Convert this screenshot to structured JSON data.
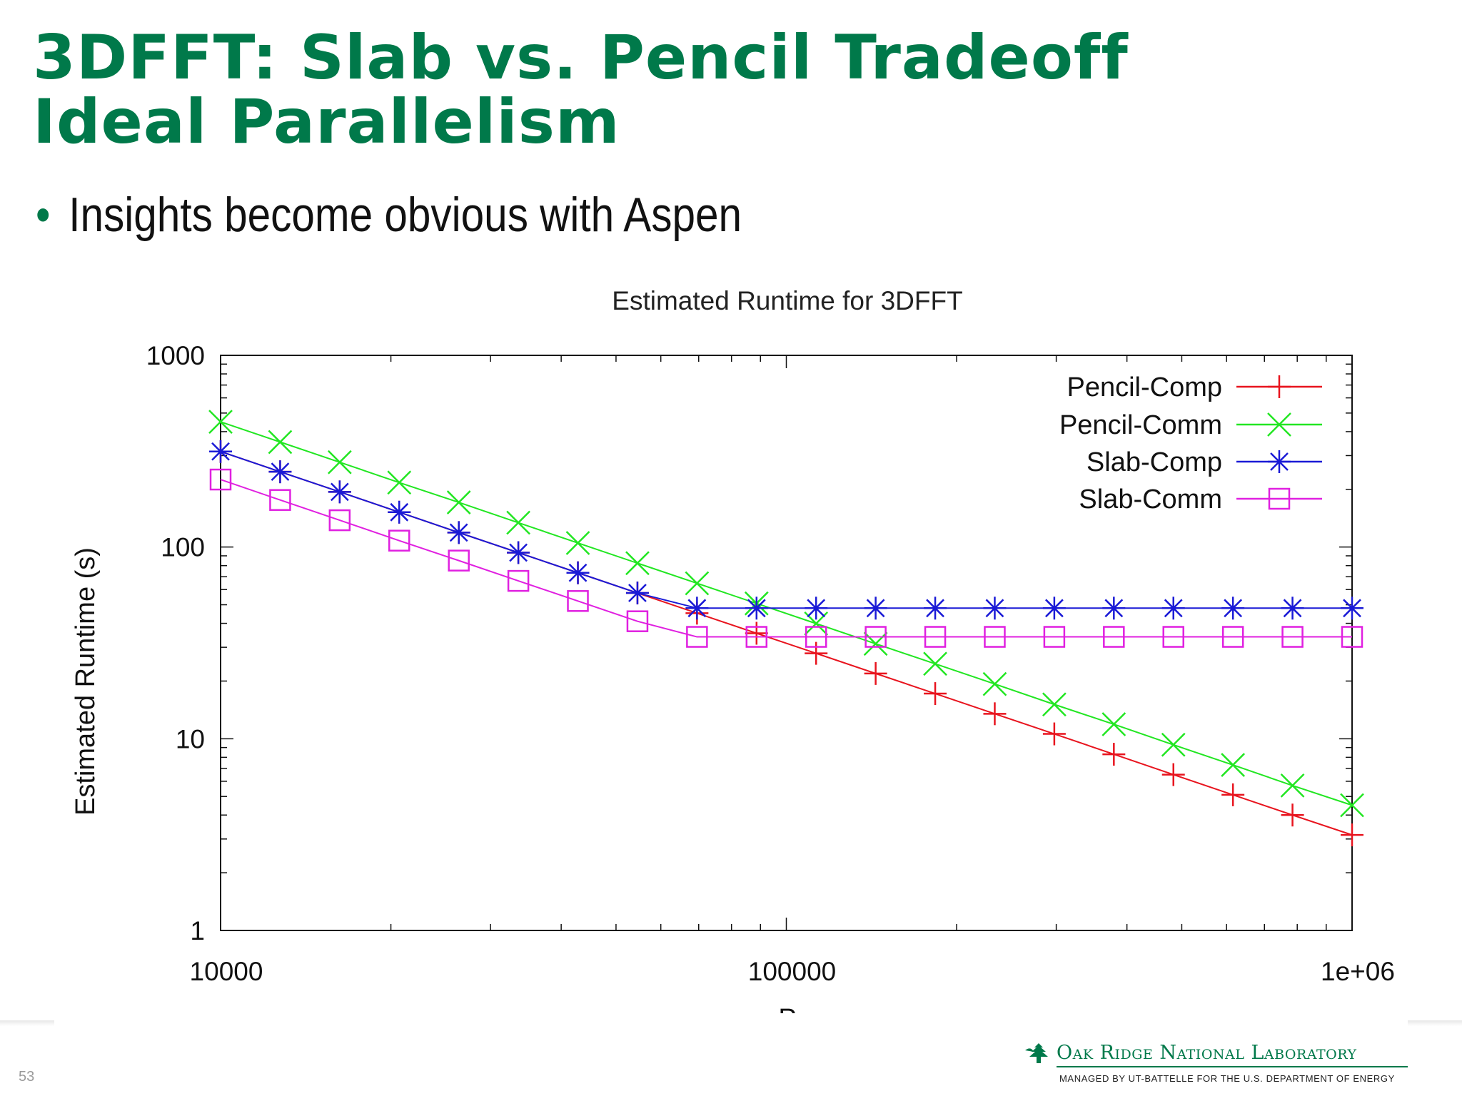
{
  "slide": {
    "title_line1": "3DFFT: Slab vs. Pencil Tradeoff",
    "title_line2": "Ideal Parallelism",
    "bullet": "Insights become obvious with Aspen",
    "page_number": "53"
  },
  "footer": {
    "org_name": "Oak Ridge National Laboratory",
    "tagline": "MANAGED BY UT-BATTELLE FOR THE U.S. DEPARTMENT OF ENERGY"
  },
  "chart_data": {
    "type": "line",
    "title": "Estimated Runtime for 3DFFT",
    "xlabel": "P",
    "ylabel": "Estimated Runtime (s)",
    "xscale": "log",
    "yscale": "log",
    "xlim": [
      10000,
      1000000
    ],
    "ylim": [
      1,
      1000
    ],
    "xticks": [
      10000,
      100000,
      1000000
    ],
    "xtick_labels": [
      "10000",
      "100000",
      "1e+06"
    ],
    "yticks": [
      1,
      10,
      100,
      1000
    ],
    "ytick_labels": [
      "1",
      "10",
      "100",
      "1000"
    ],
    "grid": false,
    "legend_position": "top-right",
    "x": [
      10000,
      12743,
      16238,
      20691,
      26367,
      33598,
      42813,
      54556,
      69519,
      88587,
      112884,
      143845,
      183298,
      233572,
      297635,
      379269,
      483293,
      615848,
      784760,
      1000000
    ],
    "series": [
      {
        "name": "Pencil-Comp",
        "color": "#e8141e",
        "marker": "plus",
        "values": [
          315,
          247,
          194,
          152,
          119,
          93.5,
          73.4,
          57.6,
          45.2,
          35.5,
          27.9,
          21.9,
          17.2,
          13.5,
          10.6,
          8.3,
          6.5,
          5.1,
          4.0,
          3.15
        ]
      },
      {
        "name": "Pencil-Comm",
        "color": "#22e622",
        "marker": "x",
        "values": [
          450,
          353,
          277,
          217,
          171,
          134,
          105,
          82.4,
          64.7,
          50.8,
          39.9,
          31.3,
          24.6,
          19.3,
          15.1,
          11.9,
          9.3,
          7.3,
          5.7,
          4.5
        ]
      },
      {
        "name": "Slab-Comp",
        "color": "#1a1ad6",
        "marker": "star",
        "values": [
          315,
          247,
          194,
          152,
          119,
          93.5,
          73.4,
          57.6,
          48,
          48,
          48,
          48,
          48,
          48,
          48,
          48,
          48,
          48,
          48,
          48
        ]
      },
      {
        "name": "Slab-Comm",
        "color": "#e020e0",
        "marker": "square",
        "values": [
          225,
          176,
          138,
          108,
          85,
          66.6,
          52.3,
          41,
          34,
          34,
          34,
          34,
          34,
          34,
          34,
          34,
          34,
          34,
          34,
          34
        ]
      }
    ]
  }
}
